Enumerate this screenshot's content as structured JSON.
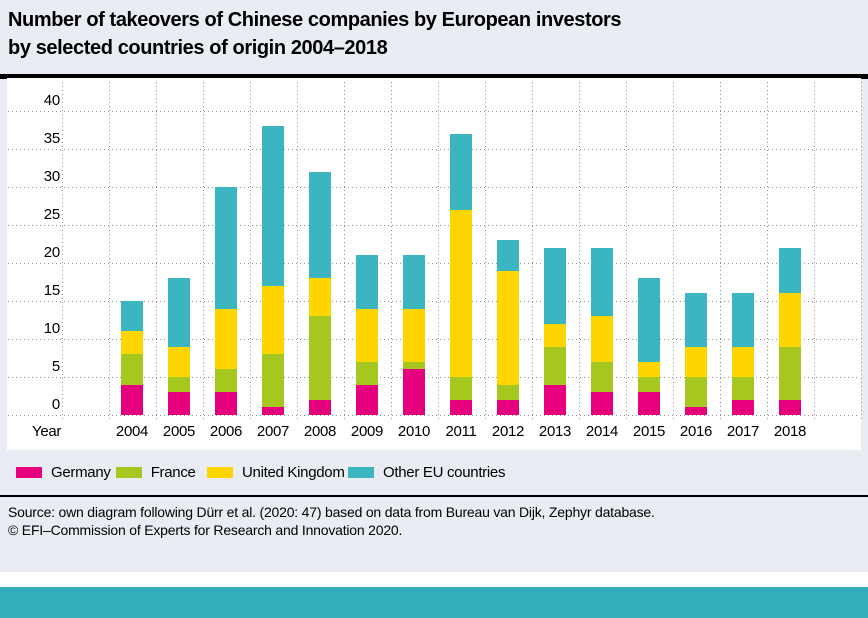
{
  "title": {
    "line1": "Number of takeovers of Chinese companies by European investors",
    "line2": "by selected countries of origin 2004–2018"
  },
  "chart_data": {
    "type": "bar",
    "subtype": "stacked",
    "categories": [
      "2004",
      "2005",
      "2006",
      "2007",
      "2008",
      "2009",
      "2010",
      "2011",
      "2012",
      "2013",
      "2014",
      "2015",
      "2016",
      "2017",
      "2018"
    ],
    "series": [
      {
        "name": "Germany",
        "color": "#e6007d",
        "values": [
          4,
          3,
          3,
          1,
          2,
          4,
          6,
          2,
          2,
          4,
          3,
          3,
          1,
          2,
          2
        ]
      },
      {
        "name": "France",
        "color": "#a5c71e",
        "values": [
          4,
          2,
          3,
          7,
          11,
          3,
          1,
          3,
          2,
          5,
          4,
          2,
          4,
          3,
          7
        ]
      },
      {
        "name": "United Kingdom",
        "color": "#ffd500",
        "values": [
          3,
          4,
          8,
          9,
          5,
          7,
          7,
          22,
          15,
          3,
          6,
          2,
          4,
          4,
          7
        ]
      },
      {
        "name": "Other EU countries",
        "color": "#3bb6c1",
        "values": [
          4,
          9,
          16,
          21,
          14,
          7,
          7,
          10,
          4,
          10,
          9,
          11,
          7,
          7,
          6
        ]
      }
    ],
    "totals": [
      15,
      18,
      30,
      38,
      32,
      21,
      21,
      37,
      23,
      22,
      22,
      18,
      16,
      16,
      22
    ],
    "xlabel": "Year",
    "ylabel": "",
    "ylim": [
      0,
      40
    ],
    "yticks": [
      0,
      5,
      10,
      15,
      20,
      25,
      30,
      35,
      40
    ],
    "grid": "dotted horizontal and vertical",
    "legend_position": "bottom"
  },
  "footer": {
    "source": "Source: own diagram following Dürr et al. (2020: 47) based on data from Bureau van Dijk, Zephyr database.",
    "copyright": "© EFI–Commission of Experts for Research and Innovation 2020."
  },
  "colors": {
    "background": "#e9edf3",
    "plot_background": "#ffffff",
    "gridline": "#8f8f8f",
    "bottom_accent_bar": "#33adba"
  }
}
